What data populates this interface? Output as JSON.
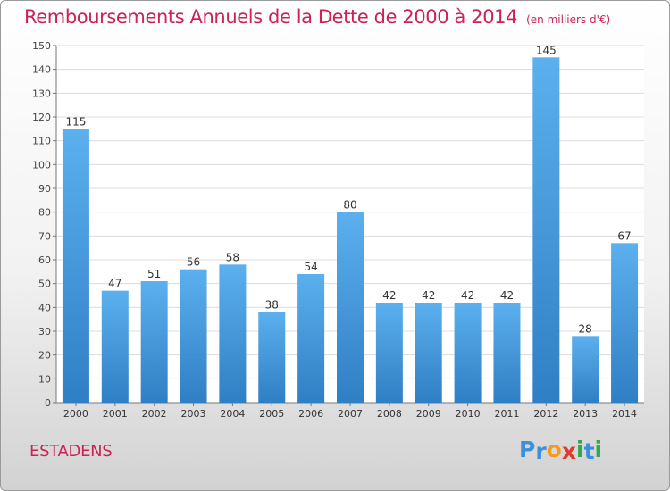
{
  "chart_data": {
    "type": "bar",
    "title": "Remboursements Annuels de la Dette de 2000 à 2014",
    "subtitle": "(en milliers d'€)",
    "categories": [
      "2000",
      "2001",
      "2002",
      "2003",
      "2004",
      "2005",
      "2006",
      "2007",
      "2008",
      "2009",
      "2010",
      "2011",
      "2012",
      "2013",
      "2014"
    ],
    "values": [
      115,
      47,
      51,
      56,
      58,
      38,
      54,
      80,
      42,
      42,
      42,
      42,
      145,
      28,
      67
    ],
    "ylim": [
      0,
      150
    ],
    "yticks": [
      0,
      10,
      20,
      30,
      40,
      50,
      60,
      70,
      80,
      90,
      100,
      110,
      120,
      130,
      140,
      150
    ],
    "xlabel": "",
    "ylabel": "",
    "grid": true,
    "bar_color": "#3f97dc"
  },
  "footer": {
    "commune": "ESTADENS",
    "logo_letters": [
      "P",
      "r",
      "o",
      "x",
      "i",
      "t",
      "i"
    ],
    "logo_colors": [
      "#3c8fdd",
      "#3c8fdd",
      "#f29c1f",
      "#e23b2e",
      "#2fa84f",
      "#3c8fdd",
      "#2fa84f"
    ]
  }
}
